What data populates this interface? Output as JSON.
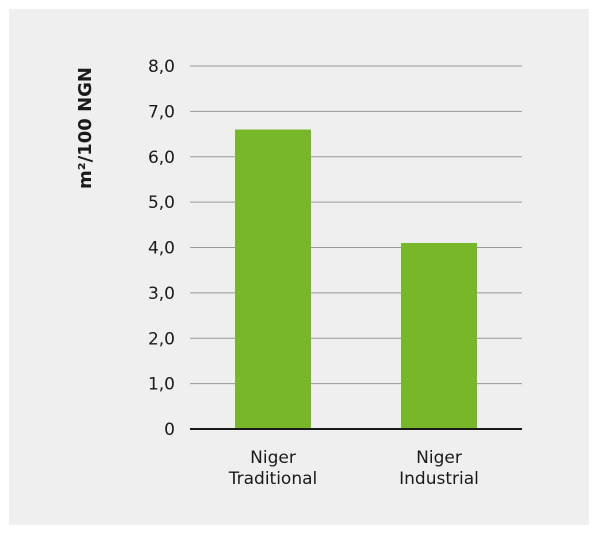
{
  "chart_data": {
    "type": "bar",
    "categories": [
      [
        "Niger",
        "Traditional"
      ],
      [
        "Niger",
        "Industrial"
      ]
    ],
    "values": [
      6.6,
      4.1
    ],
    "ylabel": "m²/100 NGN",
    "xlabel": "",
    "title": "",
    "ylim": [
      0,
      8
    ],
    "yticks": [
      "0",
      "1,0",
      "2,0",
      "3,0",
      "4,0",
      "5,0",
      "6,0",
      "7,0",
      "8,0"
    ],
    "grid": true,
    "legend": "none",
    "colors": {
      "bar": "#78b72a",
      "grid": "#9a9a9a",
      "axis": "#1a1a1a",
      "background": "#efeff0"
    }
  }
}
